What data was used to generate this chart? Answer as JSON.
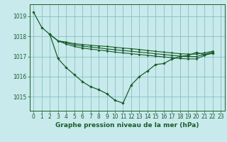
{
  "title": "Graphe pression niveau de la mer (hPa)",
  "background_color": "#c8eaec",
  "grid_color": "#7ab8b8",
  "line_color": "#1a5c2a",
  "xlim": [
    -0.5,
    23.5
  ],
  "ylim": [
    1014.3,
    1019.6
  ],
  "yticks": [
    1015,
    1016,
    1017,
    1018,
    1019
  ],
  "xticks": [
    0,
    1,
    2,
    3,
    4,
    5,
    6,
    7,
    8,
    9,
    10,
    11,
    12,
    13,
    14,
    15,
    16,
    17,
    18,
    19,
    20,
    21,
    22,
    23
  ],
  "xlabel_fontsize": 6.5,
  "tick_fontsize": 5.5,
  "series": [
    {
      "x": [
        0,
        1,
        2,
        3,
        4,
        5,
        6,
        7,
        8,
        9,
        10,
        11,
        12,
        13,
        14,
        15,
        16,
        17,
        18,
        19,
        20,
        21,
        22
      ],
      "y": [
        1019.2,
        1018.45,
        1018.1,
        1016.9,
        1016.45,
        1016.1,
        1015.75,
        1015.5,
        1015.35,
        1015.15,
        1014.82,
        1014.68,
        1015.58,
        1016.0,
        1016.28,
        1016.6,
        1016.65,
        1016.87,
        1017.0,
        1017.05,
        1017.2,
        1017.1,
        1017.15
      ],
      "lw": 0.9,
      "ms": 2.2
    },
    {
      "x": [
        2,
        3,
        4,
        5,
        6,
        7,
        8,
        9,
        10,
        11,
        12,
        13,
        14,
        15,
        16,
        17,
        18,
        19,
        20,
        21,
        22
      ],
      "y": [
        1018.1,
        1017.78,
        1017.62,
        1017.5,
        1017.42,
        1017.37,
        1017.32,
        1017.28,
        1017.22,
        1017.18,
        1017.14,
        1017.1,
        1017.06,
        1017.02,
        1016.98,
        1016.94,
        1016.9,
        1016.88,
        1016.88,
        1017.05,
        1017.18
      ],
      "lw": 0.8,
      "ms": 1.8
    },
    {
      "x": [
        2,
        3,
        4,
        5,
        6,
        7,
        8,
        9,
        10,
        11,
        12,
        13,
        14,
        15,
        16,
        17,
        18,
        19,
        20,
        21,
        22
      ],
      "y": [
        1018.1,
        1017.78,
        1017.68,
        1017.58,
        1017.52,
        1017.47,
        1017.43,
        1017.38,
        1017.34,
        1017.3,
        1017.26,
        1017.22,
        1017.18,
        1017.14,
        1017.1,
        1017.06,
        1017.02,
        1017.0,
        1017.0,
        1017.1,
        1017.22
      ],
      "lw": 0.8,
      "ms": 1.8
    },
    {
      "x": [
        2,
        3,
        4,
        5,
        6,
        7,
        8,
        9,
        10,
        11,
        12,
        13,
        14,
        15,
        16,
        17,
        18,
        19,
        20,
        21,
        22
      ],
      "y": [
        1018.1,
        1017.78,
        1017.72,
        1017.64,
        1017.6,
        1017.56,
        1017.53,
        1017.5,
        1017.46,
        1017.42,
        1017.39,
        1017.35,
        1017.3,
        1017.26,
        1017.22,
        1017.18,
        1017.14,
        1017.12,
        1017.12,
        1017.18,
        1017.26
      ],
      "lw": 0.8,
      "ms": 1.8
    }
  ]
}
